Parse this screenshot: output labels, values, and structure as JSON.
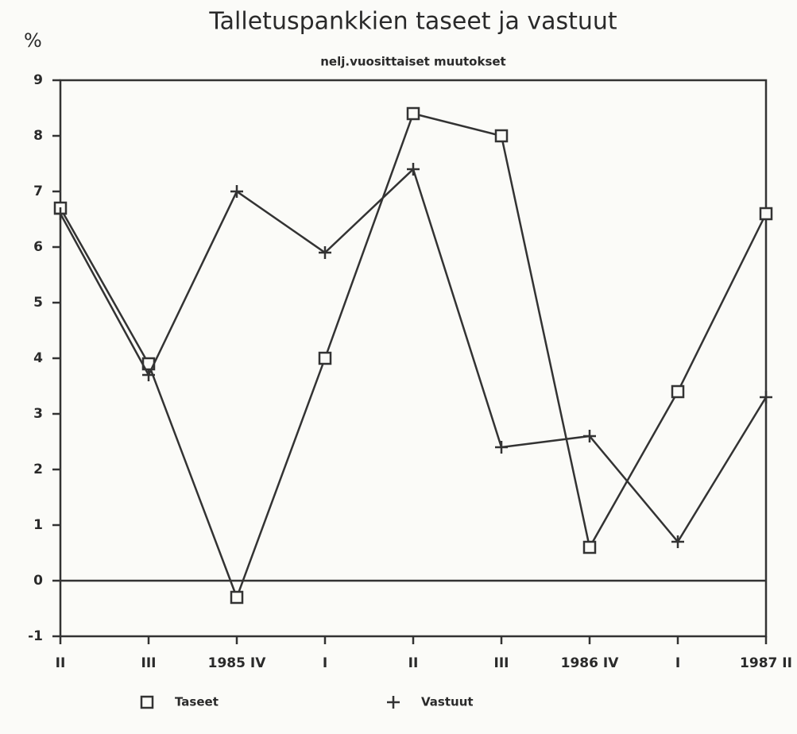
{
  "chart_data": {
    "type": "line",
    "title": "Talletuspankkien taseet ja vastuut",
    "subtitle": "nelj.vuosittaiset muutokset",
    "y_label": "%",
    "categories": [
      "II",
      "III",
      "1985 IV",
      "I",
      "II",
      "III",
      "1986 IV",
      "I",
      "1987 II"
    ],
    "series": [
      {
        "name": "Taseet",
        "color": "#333333",
        "marker": "square",
        "values": [
          6.7,
          3.9,
          -0.3,
          4.0,
          8.4,
          8.0,
          0.6,
          3.4,
          6.6
        ]
      },
      {
        "name": "Vastuut",
        "color": "#333333",
        "marker": "plus",
        "values": [
          6.6,
          3.7,
          7.0,
          5.9,
          7.4,
          2.4,
          2.6,
          0.7,
          3.3
        ]
      }
    ],
    "ylim": [
      -1,
      9
    ],
    "yticks": [
      -1,
      0,
      1,
      2,
      3,
      4,
      5,
      6,
      7,
      8,
      9
    ],
    "zero_line": true,
    "legend": "bottom"
  }
}
